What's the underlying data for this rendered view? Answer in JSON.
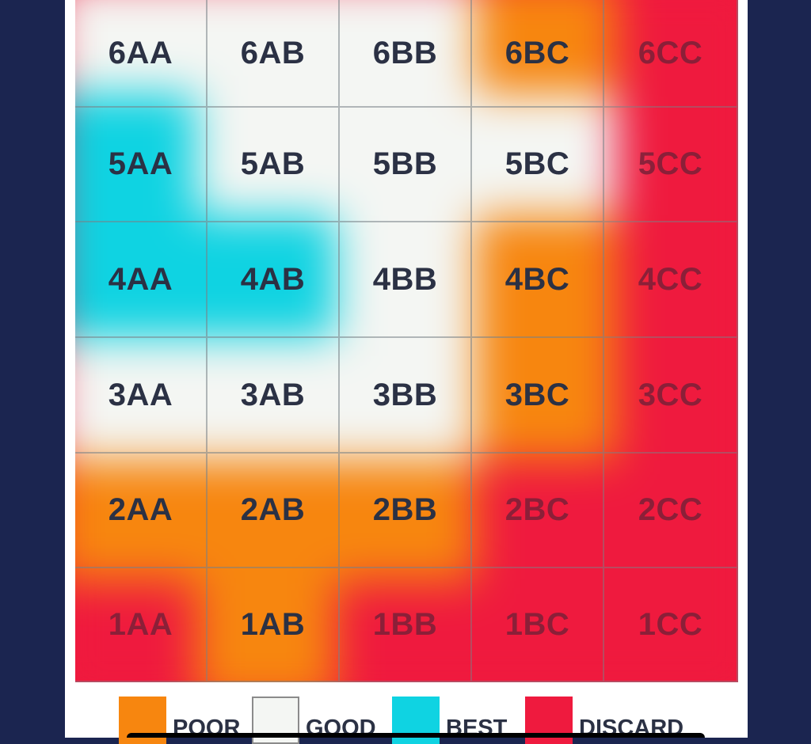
{
  "chart_data": {
    "type": "heatmap",
    "rows": [
      "6",
      "5",
      "4",
      "3",
      "2",
      "1"
    ],
    "columns": [
      "AA",
      "AB",
      "BB",
      "BC",
      "CC"
    ],
    "cells": [
      [
        "6AA",
        "6AB",
        "6BB",
        "6BC",
        "6CC"
      ],
      [
        "5AA",
        "5AB",
        "5BB",
        "5BC",
        "5CC"
      ],
      [
        "4AA",
        "4AB",
        "4BB",
        "4BC",
        "4CC"
      ],
      [
        "3AA",
        "3AB",
        "3BB",
        "3BC",
        "3CC"
      ],
      [
        "2AA",
        "2AB",
        "2BB",
        "2BC",
        "2CC"
      ],
      [
        "1AA",
        "1AB",
        "1BB",
        "1BC",
        "1CC"
      ]
    ],
    "categories_grid": [
      [
        "GOOD",
        "GOOD",
        "GOOD",
        "POOR",
        "DISCARD"
      ],
      [
        "BEST",
        "GOOD",
        "GOOD",
        "GOOD",
        "DISCARD"
      ],
      [
        "BEST",
        "BEST",
        "GOOD",
        "POOR",
        "DISCARD"
      ],
      [
        "GOOD",
        "GOOD",
        "GOOD",
        "POOR",
        "DISCARD"
      ],
      [
        "POOR",
        "POOR",
        "POOR",
        "DISCARD",
        "DISCARD"
      ],
      [
        "DISCARD",
        "POOR",
        "DISCARD",
        "DISCARD",
        "DISCARD"
      ]
    ],
    "legend": [
      {
        "label": "POOR",
        "color": "#f7860f"
      },
      {
        "label": "GOOD",
        "color": "#f4f6f3"
      },
      {
        "label": "BEST",
        "color": "#0fd3e2"
      },
      {
        "label": "DISCARD",
        "color": "#ef1a3e"
      }
    ],
    "legend_placement": "bottom",
    "grid": true
  }
}
